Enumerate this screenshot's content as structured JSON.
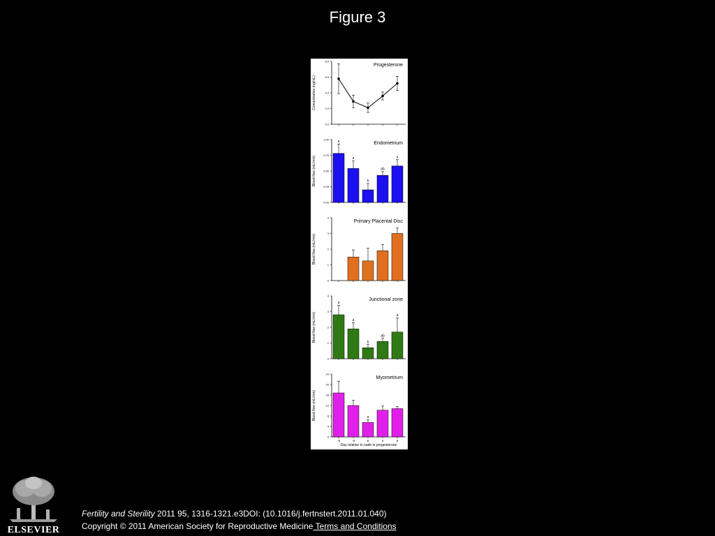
{
  "slide": {
    "title": "Figure 3"
  },
  "footer": {
    "journal": "Fertility and Sterility",
    "citation_rest": " 2011 95, 1316-1321.e3DOI: (10.1016/j.fertnstert.2011.01.040)",
    "copyright": "Copyright © 2011 American Society for Reproductive Medicine",
    "terms_link": " Terms and Conditions",
    "logo_text": "ELSEVIER"
  },
  "colors": {
    "endometrium": "#1a10f0",
    "placental": "#e07020",
    "junctional": "#2f7a14",
    "myometrium": "#e020e8",
    "line": "#000000"
  },
  "chart_data": [
    {
      "type": "line",
      "title": "Progesterone",
      "ylabel": "Concentration (ng/mL)",
      "ylim": [
        0,
        8
      ],
      "yticks": [
        "0.0",
        "2.0",
        "4.0",
        "6.0",
        "8.0"
      ],
      "x": [
        -6,
        -3,
        0,
        3,
        6
      ],
      "values": [
        5.8,
        2.9,
        2.1,
        3.6,
        5.2
      ],
      "errors": [
        1.9,
        0.8,
        0.6,
        0.5,
        0.9
      ],
      "letters": [
        "",
        "",
        "",
        "",
        ""
      ]
    },
    {
      "type": "bar",
      "title": "Endometrium",
      "ylabel": "Blood flow (mL/min)",
      "ylim": [
        0,
        1
      ],
      "yticks": [
        "0.00",
        "0.25",
        "0.50",
        "0.75",
        "1.00"
      ],
      "x": [
        -6,
        -3,
        0,
        3,
        6
      ],
      "values": [
        0.78,
        0.54,
        0.2,
        0.43,
        0.58
      ],
      "errors": [
        0.15,
        0.12,
        0.1,
        0.06,
        0.1
      ],
      "letters": [
        "a",
        "a",
        "b",
        "ab",
        "a"
      ]
    },
    {
      "type": "bar",
      "title": "Primary Placental Disc",
      "ylabel": "Blood flow (mL/min)",
      "ylim": [
        0,
        4
      ],
      "yticks": [
        "0",
        "1",
        "2",
        "3",
        "4"
      ],
      "x": [
        -6,
        -3,
        0,
        3,
        6
      ],
      "values": [
        null,
        1.5,
        1.25,
        1.9,
        3.0
      ],
      "errors": [
        null,
        0.45,
        0.8,
        0.4,
        0.35
      ],
      "letters": [
        "",
        "",
        "",
        "",
        ""
      ]
    },
    {
      "type": "bar",
      "title": "Junctional zone",
      "ylabel": "Blood flow (mL/min)",
      "ylim": [
        0,
        4
      ],
      "yticks": [
        "0",
        "1",
        "2",
        "3",
        "4"
      ],
      "x": [
        -6,
        -3,
        0,
        3,
        6
      ],
      "values": [
        2.8,
        1.9,
        0.7,
        1.1,
        1.7
      ],
      "errors": [
        0.6,
        0.4,
        0.2,
        0.2,
        0.9
      ],
      "letters": [
        "a",
        "a",
        "b",
        "ab",
        "a"
      ]
    },
    {
      "type": "bar",
      "title": "Myometrium",
      "ylabel": "Blood flow (mL/min)",
      "xlabel": "Day relative to nadir in progesterone",
      "ylim": [
        0,
        24
      ],
      "yticks": [
        "0",
        "4",
        "8",
        "12",
        "16",
        "20",
        "24"
      ],
      "xticks": [
        "-6",
        "-3",
        "0",
        "3",
        "6"
      ],
      "x": [
        -6,
        -3,
        0,
        3,
        6
      ],
      "values": [
        16.8,
        12.0,
        5.5,
        10.2,
        10.8
      ],
      "errors": [
        4.5,
        2.0,
        1.0,
        1.6,
        0.8
      ],
      "letters": [
        "",
        "",
        "a",
        "",
        ""
      ]
    }
  ]
}
